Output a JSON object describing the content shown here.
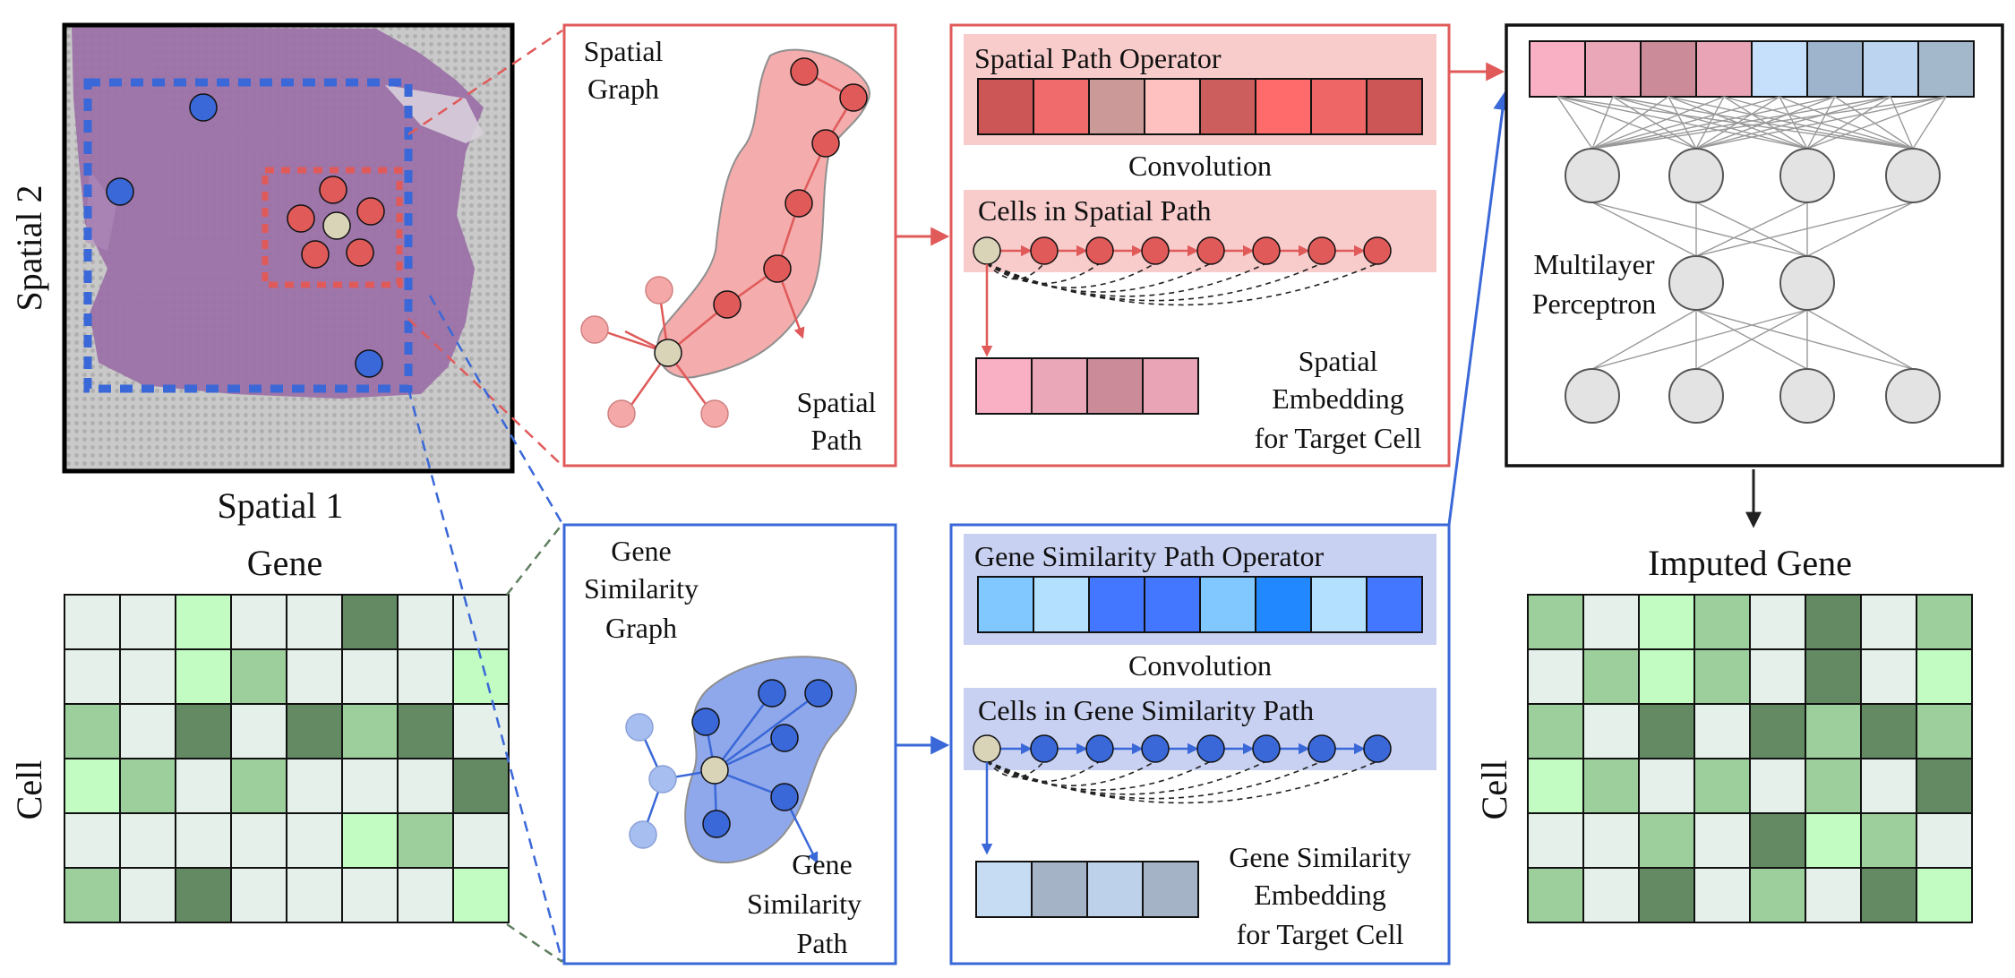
{
  "labels": {
    "spatial2": "Spatial 2",
    "spatial1": "Spatial 1",
    "gene_axis": "Gene",
    "cell_axis_left": "Cell",
    "cell_axis_right": "Cell",
    "imputed_gene": "Imputed Gene"
  },
  "spatial_graph_panel": {
    "graph_line1": "Spatial",
    "graph_line2": "Graph",
    "path_line1": "Spatial",
    "path_line2": "Path"
  },
  "spatial_operator_panel": {
    "operator_title": "Spatial Path Operator",
    "convolution": "Convolution",
    "cells_title": "Cells in Spatial Path",
    "embed_line1": "Spatial",
    "embed_line2": "Embedding",
    "embed_line3": "for Target Cell"
  },
  "gene_graph_panel": {
    "graph_line1": "Gene",
    "graph_line2": "Similarity",
    "graph_line3": "Graph",
    "path_line1": "Gene",
    "path_line2": "Similarity",
    "path_line3": "Path"
  },
  "gene_operator_panel": {
    "operator_title": "Gene Similarity Path Operator",
    "convolution": "Convolution",
    "cells_title": "Cells in Gene Similarity Path",
    "embed_line1": "Gene Similarity",
    "embed_line2": "Embedding",
    "embed_line3": "for Target Cell"
  },
  "mlp_panel": {
    "label_line1": "Multilayer",
    "label_line2": "Perceptron"
  },
  "colors": {
    "spatial_accent": "#e05a5a",
    "gene_accent": "#3a68d8",
    "grid_light": "#e4f0e9",
    "grid_mid": "#9ccf9c",
    "grid_dark": "#638a63",
    "grid_bright": "#c2fcc2"
  },
  "operator_colors": {
    "spatial_kernel": [
      "#cc5555",
      "#f06b6b",
      "#cc9999",
      "#ffc0c0",
      "#cc5e5e",
      "#ff6b6b",
      "#ee6666",
      "#cc5555"
    ],
    "spatial_embedding": [
      "#f9b0c4",
      "#e9a7b7",
      "#cc8b99",
      "#e9a5b5"
    ],
    "gene_kernel": [
      "#80c8ff",
      "#b3e0ff",
      "#4477ff",
      "#4477ff",
      "#80c8ff",
      "#2288ff",
      "#b3e0ff",
      "#4477ff"
    ],
    "gene_embedding": [
      "#c6dcf2",
      "#a4b3c6",
      "#bdd2ea",
      "#a4b3c6"
    ],
    "combined_embedding": [
      "#f9b0c4",
      "#e9a7b7",
      "#cc8b99",
      "#e9a5b5",
      "#c6e0fb",
      "#9db4cc",
      "#bcd4ef",
      "#a4b8cc"
    ]
  },
  "gene_matrix": [
    [
      0,
      0,
      3,
      0,
      0,
      1,
      0,
      0
    ],
    [
      0,
      0,
      3,
      2,
      0,
      0,
      0,
      3
    ],
    [
      2,
      0,
      1,
      0,
      1,
      2,
      1,
      0
    ],
    [
      3,
      2,
      0,
      2,
      0,
      0,
      0,
      1
    ],
    [
      0,
      0,
      0,
      0,
      0,
      3,
      2,
      0
    ],
    [
      2,
      0,
      1,
      0,
      0,
      0,
      0,
      3
    ]
  ],
  "imputed_matrix": [
    [
      2,
      0,
      3,
      2,
      0,
      1,
      0,
      2
    ],
    [
      0,
      2,
      3,
      2,
      0,
      1,
      0,
      3
    ],
    [
      2,
      0,
      1,
      0,
      1,
      2,
      1,
      2
    ],
    [
      3,
      2,
      0,
      2,
      0,
      2,
      0,
      1
    ],
    [
      0,
      0,
      2,
      0,
      1,
      3,
      2,
      0
    ],
    [
      2,
      0,
      1,
      0,
      2,
      0,
      1,
      3
    ]
  ]
}
